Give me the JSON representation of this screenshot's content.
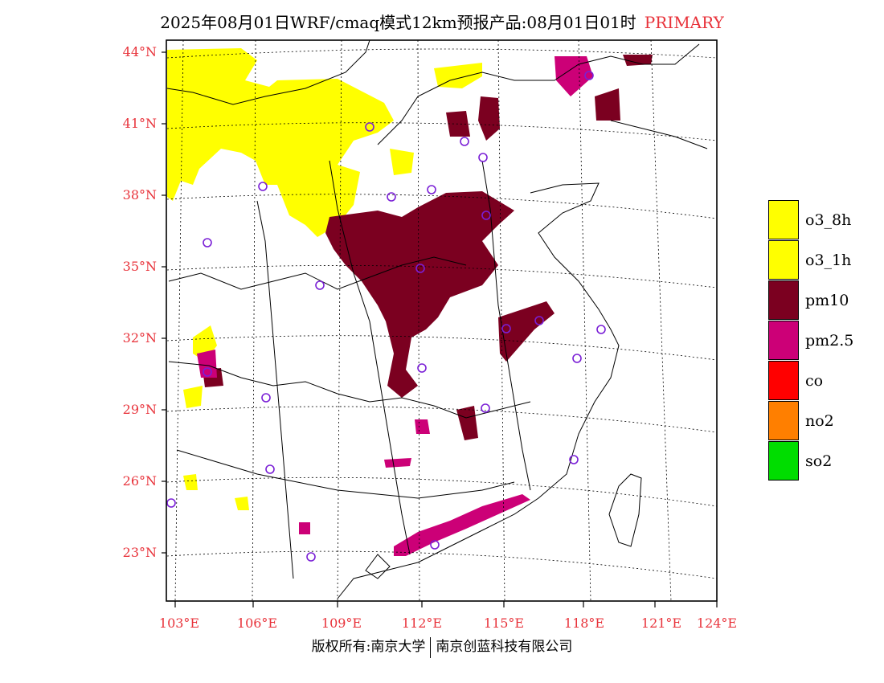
{
  "title": {
    "text": "2025年08月01日WRF/cmaq模式12km预报产品:08月01日01时",
    "tag": "PRIMARY"
  },
  "axes": {
    "lat_labels": [
      "44°N",
      "41°N",
      "38°N",
      "35°N",
      "32°N",
      "29°N",
      "26°N",
      "23°N"
    ],
    "lon_labels": [
      "103°E",
      "106°E",
      "109°E",
      "112°E",
      "115°E",
      "118°E",
      "121°E",
      "124°E"
    ]
  },
  "legend": [
    {
      "label": "o3_8h",
      "color": "#ffff00"
    },
    {
      "label": "o3_1h",
      "color": "#ffff00"
    },
    {
      "label": "pm10",
      "color": "#7b0020"
    },
    {
      "label": "pm2.5",
      "color": "#cc0077"
    },
    {
      "label": "co",
      "color": "#ff0000"
    },
    {
      "label": "no2",
      "color": "#ff7f00"
    },
    {
      "label": "so2",
      "color": "#00dd00"
    }
  ],
  "colors": {
    "label_red": "#e8323a",
    "circle": "#7a1fd6"
  },
  "copyright": {
    "left": "版权所有:南京大学",
    "right": "南京创蓝科技有限公司"
  }
}
